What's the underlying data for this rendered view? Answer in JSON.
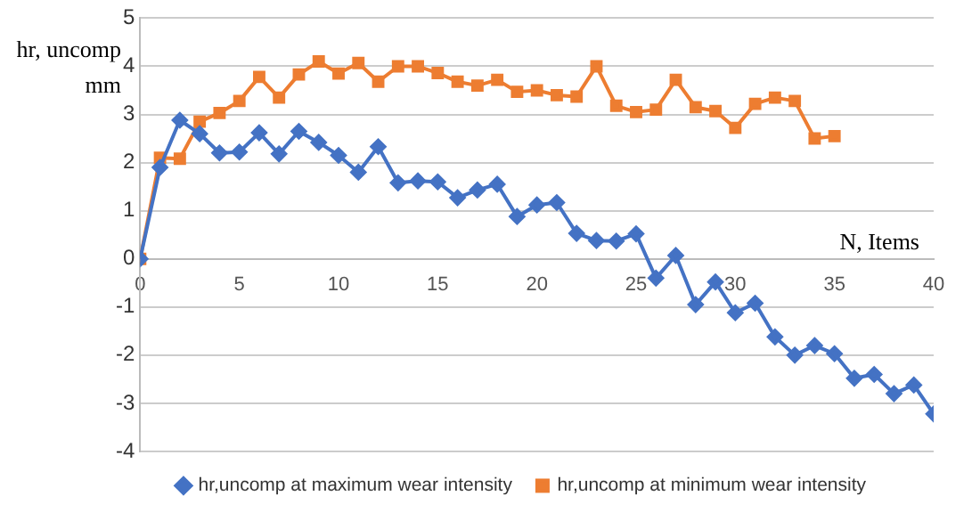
{
  "chart_data": {
    "type": "line",
    "ylabel": "hr, uncomp mm",
    "xlabel": "N,  Items",
    "x": [
      0,
      1,
      2,
      3,
      4,
      5,
      6,
      7,
      8,
      9,
      10,
      11,
      12,
      13,
      14,
      15,
      16,
      17,
      18,
      19,
      20,
      21,
      22,
      23,
      24,
      25,
      26,
      27,
      28,
      29,
      30,
      31,
      32,
      33,
      34,
      35,
      36,
      37,
      38,
      39,
      40
    ],
    "series": [
      {
        "name": "hr,uncomp at maximum wear intensity",
        "color": "#4472c4",
        "marker": "diamond",
        "values": [
          0,
          1.9,
          2.88,
          2.6,
          2.2,
          2.22,
          2.62,
          2.18,
          2.65,
          2.42,
          2.15,
          1.8,
          2.33,
          1.58,
          1.62,
          1.6,
          1.27,
          1.43,
          1.55,
          0.88,
          1.12,
          1.17,
          0.53,
          0.38,
          0.37,
          0.52,
          -0.4,
          0.07,
          -0.95,
          -0.48,
          -1.12,
          -0.92,
          -1.62,
          -2.0,
          -1.8,
          -1.97,
          -2.48,
          -2.4,
          -2.8,
          -2.62,
          -3.22
        ]
      },
      {
        "name": "hr,uncomp at minimum wear intensity",
        "color": "#ed7d31",
        "marker": "square",
        "x": [
          0,
          1,
          2,
          3,
          4,
          5,
          6,
          7,
          8,
          9,
          10,
          11,
          12,
          13,
          14,
          15,
          16,
          17,
          18,
          19,
          20,
          21,
          22,
          23,
          24,
          25,
          26,
          27,
          28,
          29,
          30,
          31,
          32,
          33,
          34,
          35
        ],
        "values": [
          0,
          2.1,
          2.08,
          2.85,
          3.03,
          3.28,
          3.78,
          3.35,
          3.83,
          4.1,
          3.85,
          4.07,
          3.68,
          4.0,
          4.0,
          3.86,
          3.68,
          3.6,
          3.72,
          3.47,
          3.5,
          3.4,
          3.37,
          4.0,
          3.18,
          3.05,
          3.1,
          3.72,
          3.15,
          3.07,
          2.72,
          3.22,
          3.35,
          3.28,
          2.5,
          2.55
        ]
      }
    ],
    "xlim": [
      0,
      40
    ],
    "xticks": [
      0,
      5,
      10,
      15,
      20,
      25,
      30,
      35,
      40
    ],
    "ylim": [
      -4,
      5
    ],
    "yticks": [
      -4,
      -3,
      -2,
      -1,
      0,
      1,
      2,
      3,
      4,
      5
    ],
    "grid": "y",
    "legend": "bottom"
  }
}
